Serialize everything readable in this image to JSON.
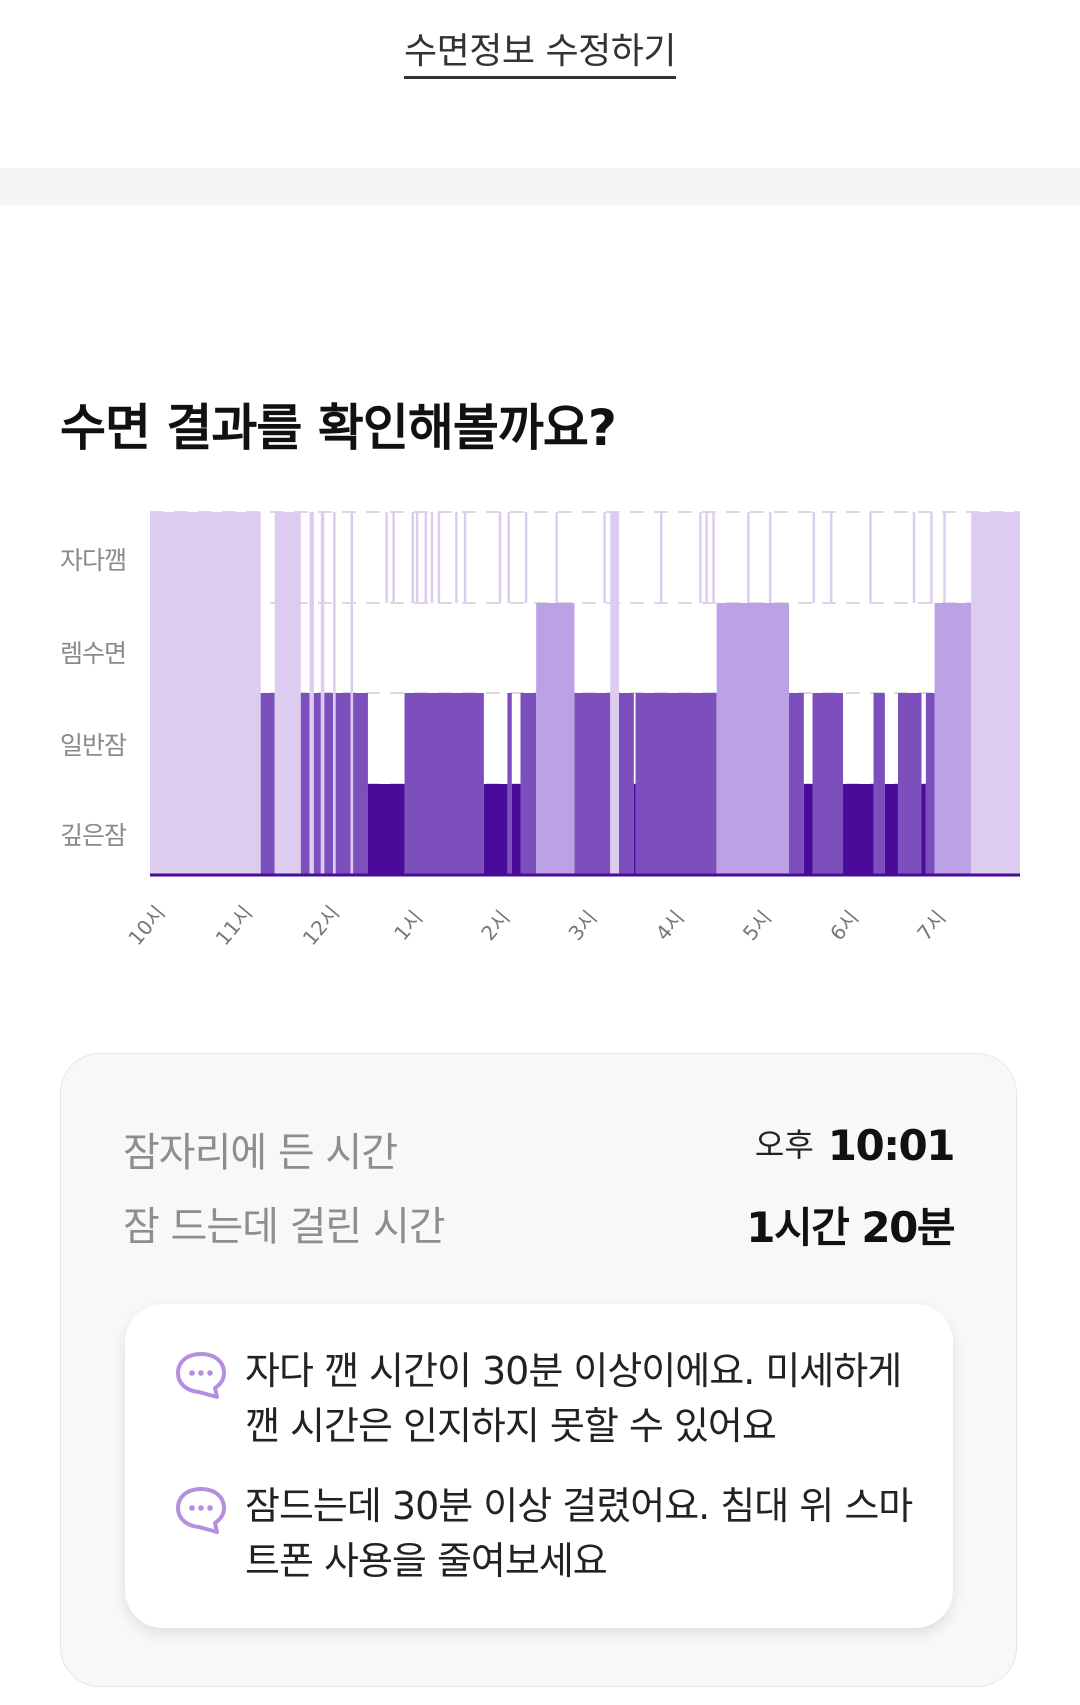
{
  "edit_link": "수면정보 수정하기",
  "section_title": "수면 결과를 확인해볼까요?",
  "chart_data": {
    "type": "hypnogram",
    "stages": [
      "자다깸",
      "렘수면",
      "일반잠",
      "깊은잠"
    ],
    "x_ticks": [
      "10시",
      "11시",
      "12시",
      "1시",
      "2시",
      "3시",
      "4시",
      "5시",
      "6시",
      "7시"
    ],
    "x_range_hours": [
      0,
      9.98
    ],
    "colors": {
      "자다깸": "#dccdf0",
      "렘수면": "#bca2e4",
      "일반잠": "#7c4fbd",
      "깊은잠": "#4a0b9a"
    },
    "segments": [
      {
        "stage": "자다깸",
        "start": 0.0,
        "end": 1.27
      },
      {
        "stage": "일반잠",
        "start": 1.27,
        "end": 1.43
      },
      {
        "stage": "자다깸",
        "start": 1.43,
        "end": 1.73
      },
      {
        "stage": "일반잠",
        "start": 1.73,
        "end": 1.83
      },
      {
        "stage": "자다깸",
        "start": 1.83,
        "end": 1.88
      },
      {
        "stage": "일반잠",
        "start": 1.88,
        "end": 1.96
      },
      {
        "stage": "자다깸",
        "start": 1.96,
        "end": 2.0
      },
      {
        "stage": "일반잠",
        "start": 2.0,
        "end": 2.1
      },
      {
        "stage": "자다깸",
        "start": 2.1,
        "end": 2.13
      },
      {
        "stage": "일반잠",
        "start": 2.13,
        "end": 2.3
      },
      {
        "stage": "자다깸",
        "start": 2.3,
        "end": 2.33
      },
      {
        "stage": "일반잠",
        "start": 2.33,
        "end": 2.5
      },
      {
        "stage": "깊은잠",
        "start": 2.5,
        "end": 2.92
      },
      {
        "stage": "일반잠",
        "start": 2.92,
        "end": 3.83
      },
      {
        "stage": "깊은잠",
        "start": 3.83,
        "end": 4.1
      },
      {
        "stage": "일반잠",
        "start": 4.1,
        "end": 4.15
      },
      {
        "stage": "깊은잠",
        "start": 4.15,
        "end": 4.25
      },
      {
        "stage": "일반잠",
        "start": 4.25,
        "end": 4.43
      },
      {
        "stage": "렘수면",
        "start": 4.43,
        "end": 4.87
      },
      {
        "stage": "일반잠",
        "start": 4.87,
        "end": 5.28
      },
      {
        "stage": "자다깸",
        "start": 5.28,
        "end": 5.38
      },
      {
        "stage": "일반잠",
        "start": 5.38,
        "end": 5.55
      },
      {
        "stage": "깊은잠",
        "start": 5.55,
        "end": 5.57
      },
      {
        "stage": "일반잠",
        "start": 5.57,
        "end": 6.5
      },
      {
        "stage": "렘수면",
        "start": 6.5,
        "end": 7.33
      },
      {
        "stage": "일반잠",
        "start": 7.33,
        "end": 7.5
      },
      {
        "stage": "깊은잠",
        "start": 7.5,
        "end": 7.6
      },
      {
        "stage": "일반잠",
        "start": 7.6,
        "end": 7.95
      },
      {
        "stage": "깊은잠",
        "start": 7.95,
        "end": 8.3
      },
      {
        "stage": "일반잠",
        "start": 8.3,
        "end": 8.43
      },
      {
        "stage": "깊은잠",
        "start": 8.43,
        "end": 8.58
      },
      {
        "stage": "일반잠",
        "start": 8.58,
        "end": 8.85
      },
      {
        "stage": "깊은잠",
        "start": 8.85,
        "end": 8.9
      },
      {
        "stage": "일반잠",
        "start": 8.9,
        "end": 9.0
      },
      {
        "stage": "렘수면",
        "start": 9.0,
        "end": 9.42
      },
      {
        "stage": "자다깸",
        "start": 9.42,
        "end": 9.98
      }
    ],
    "awake_spikes": [
      2.7,
      2.78,
      3.0,
      3.05,
      3.15,
      3.22,
      3.3,
      3.5,
      3.6,
      4.0,
      4.1,
      4.3,
      4.65,
      5.2,
      5.85,
      6.3,
      6.37,
      6.45,
      6.85,
      7.1,
      7.6,
      7.8,
      8.25,
      8.75,
      8.95,
      9.1
    ]
  },
  "summary": {
    "bed_time_label": "잠자리에 든 시간",
    "bed_time_ampm": "오후",
    "bed_time_value": "10:01",
    "latency_label": "잠 드는데 걸린 시간",
    "latency_value": "1시간 20분"
  },
  "tips": [
    {
      "icon": "chat-bubble-icon",
      "text": "자다 깬 시간이 30분 이상이에요. 미세하게 깬 시간은 인지하지 못할 수 있어요"
    },
    {
      "icon": "chat-bubble-icon",
      "text": "잠드는데 30분 이상 걸렸어요. 침대 위 스마트폰 사용을 줄여보세요"
    }
  ]
}
